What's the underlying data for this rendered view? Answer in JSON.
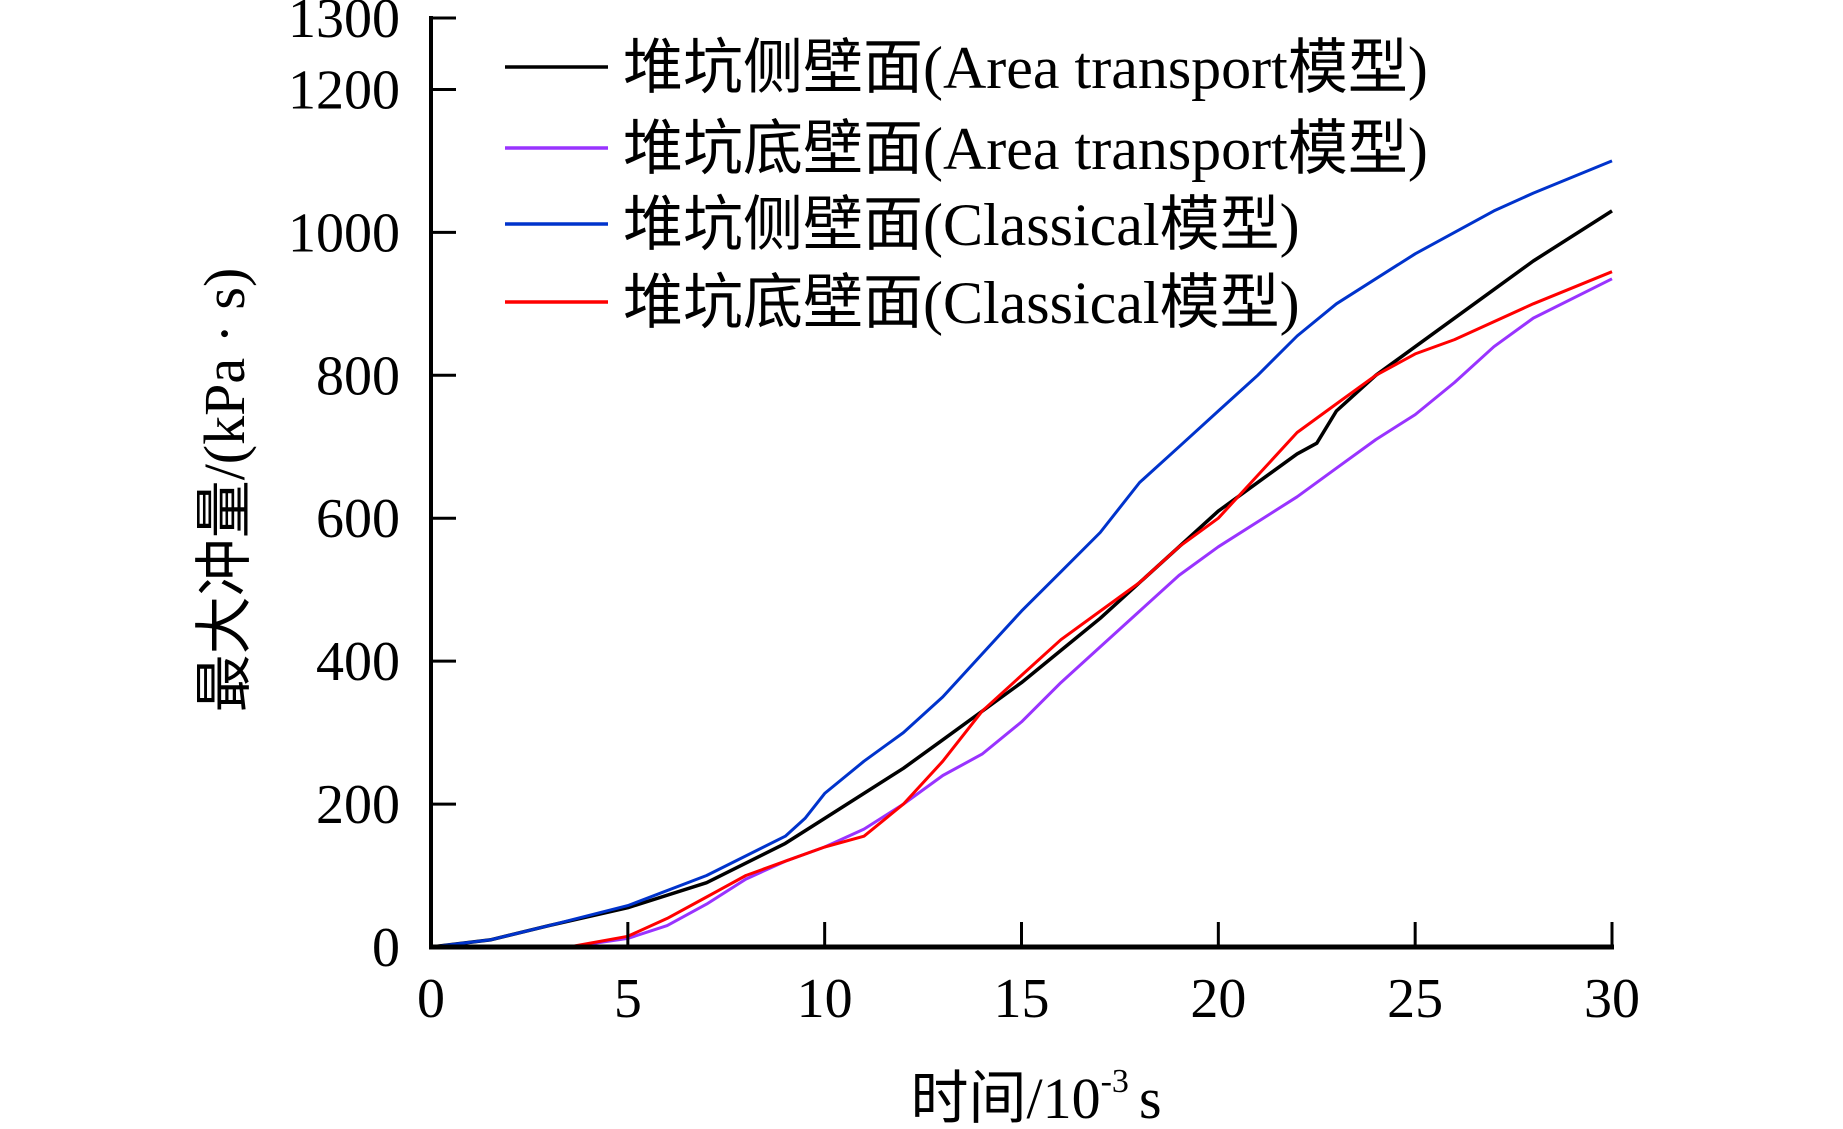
{
  "chart_data": {
    "type": "line",
    "title": "",
    "xlabel": "时间/10",
    "xlabel_sup": "-3",
    "xlabel_unit": "s",
    "ylabel": "最大冲量/(kPa · s)",
    "xlim": [
      0,
      30
    ],
    "ylim": [
      0,
      1300
    ],
    "xticks": [
      0,
      5,
      10,
      15,
      20,
      25,
      30
    ],
    "yticks": [
      0,
      200,
      400,
      600,
      800,
      1000,
      1200,
      1300
    ],
    "grid": false,
    "legend_position": "top-left",
    "series": [
      {
        "name": "堆坑侧壁面(Area transport模型)",
        "color": "#000000",
        "x": [
          0,
          1.5,
          3,
          5,
          7,
          9,
          10,
          12,
          13,
          15,
          17,
          19,
          20,
          22,
          22.5,
          23,
          24,
          25,
          27,
          28,
          30
        ],
        "y": [
          0,
          10,
          30,
          55,
          90,
          145,
          180,
          250,
          290,
          370,
          460,
          560,
          610,
          690,
          705,
          750,
          800,
          840,
          920,
          960,
          1030
        ]
      },
      {
        "name": "堆坑底壁面(Area transport模型)",
        "color": "#9933ff",
        "x": [
          3.5,
          5,
          6,
          7,
          8,
          9,
          10,
          11,
          12,
          13,
          14,
          15,
          16,
          17,
          18,
          19,
          20,
          22,
          23,
          24,
          25,
          26,
          27,
          28,
          30
        ],
        "y": [
          0,
          12,
          30,
          60,
          95,
          120,
          140,
          165,
          200,
          240,
          270,
          315,
          370,
          420,
          470,
          520,
          560,
          630,
          670,
          710,
          745,
          790,
          840,
          880,
          935
        ]
      },
      {
        "name": "堆坑侧壁面(Classical模型)",
        "color": "#0033cc",
        "x": [
          0,
          1.5,
          3,
          5,
          7,
          9,
          9.5,
          10,
          11,
          12,
          13,
          14,
          15,
          16,
          17,
          18,
          19,
          20,
          21,
          22,
          23,
          25,
          27,
          28,
          30
        ],
        "y": [
          0,
          10,
          30,
          58,
          100,
          155,
          180,
          215,
          260,
          300,
          350,
          410,
          470,
          525,
          580,
          650,
          700,
          750,
          800,
          855,
          900,
          970,
          1030,
          1055,
          1100
        ]
      },
      {
        "name": "堆坑底壁面(Classical模型)",
        "color": "#ff0000",
        "x": [
          3.5,
          5,
          6,
          7,
          8,
          9,
          10,
          11,
          12,
          13,
          14,
          15,
          16,
          17,
          18,
          19,
          20,
          21,
          22,
          23,
          24,
          25,
          26,
          28,
          30
        ],
        "y": [
          0,
          15,
          40,
          70,
          100,
          120,
          140,
          155,
          200,
          260,
          330,
          380,
          430,
          470,
          510,
          560,
          600,
          660,
          720,
          760,
          800,
          830,
          850,
          900,
          945
        ]
      }
    ]
  }
}
